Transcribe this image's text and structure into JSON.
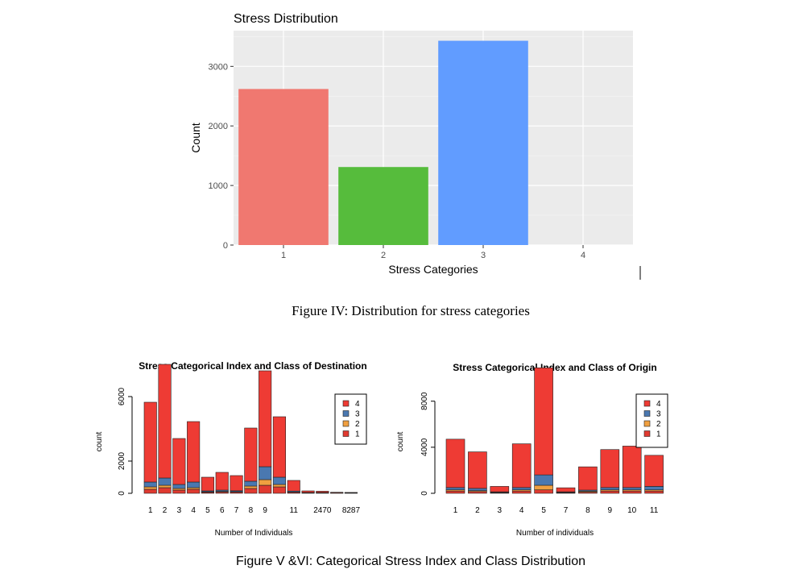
{
  "captions": {
    "fig4": "Figure IV: Distribution for stress categories",
    "fig56": "Figure V &VI: Categorical Stress Index and Class Distribution"
  },
  "chart_data": [
    {
      "type": "bar",
      "title": "Stress Distribution",
      "xlabel": "Stress Categories",
      "ylabel": "Count",
      "categories": [
        "1",
        "2",
        "3",
        "4"
      ],
      "values": [
        2620,
        1310,
        3430,
        0
      ],
      "colors": [
        "#F07870",
        "#56BC3C",
        "#619CFF",
        "#C77CFF"
      ],
      "yticks": [
        0,
        1000,
        2000,
        3000
      ],
      "ylim": [
        0,
        3600
      ],
      "grid": true,
      "background": "#EBEBEB"
    },
    {
      "type": "bar",
      "stacked": true,
      "title": "Stress Categorical Index and Class of Destination",
      "xlabel": "Number of Individuals",
      "ylabel": "count",
      "categories": [
        "1",
        "2",
        "3",
        "4",
        "5",
        "6",
        "7",
        "8",
        "9",
        "",
        "11",
        "",
        "2470",
        "",
        "8287"
      ],
      "series": [
        {
          "name": "1",
          "color": "#E03A30",
          "values": [
            250,
            350,
            200,
            250,
            60,
            80,
            70,
            300,
            500,
            400,
            60,
            20,
            20,
            10,
            10
          ]
        },
        {
          "name": "2",
          "color": "#F0A040",
          "values": [
            150,
            150,
            100,
            100,
            30,
            40,
            30,
            150,
            350,
            150,
            20,
            10,
            10,
            5,
            5
          ]
        },
        {
          "name": "3",
          "color": "#4A78B0",
          "values": [
            300,
            450,
            250,
            350,
            60,
            80,
            60,
            300,
            800,
            450,
            60,
            20,
            20,
            10,
            10
          ]
        },
        {
          "name": "4",
          "color": "#EE3B34",
          "values": [
            4950,
            7050,
            2850,
            3750,
            850,
            1100,
            940,
            3300,
            5950,
            3750,
            660,
            100,
            80,
            40,
            30
          ]
        }
      ],
      "yticks": [
        0,
        2000,
        6000
      ],
      "ylim": [
        0,
        8000
      ],
      "legend": {
        "placement": "top-right",
        "labels": [
          "4",
          "3",
          "2",
          "1"
        ]
      }
    },
    {
      "type": "bar",
      "stacked": true,
      "title": "Stress Categorical Index and Class of Origin",
      "xlabel": "Number of individuals",
      "ylabel": "count",
      "categories": [
        "1",
        "2",
        "3",
        "4",
        "5",
        "7",
        "8",
        "9",
        "10",
        "11"
      ],
      "series": [
        {
          "name": "1",
          "color": "#E03A30",
          "values": [
            200,
            150,
            50,
            200,
            300,
            50,
            100,
            200,
            200,
            200
          ]
        },
        {
          "name": "2",
          "color": "#F0A040",
          "values": [
            100,
            80,
            30,
            100,
            400,
            30,
            80,
            100,
            100,
            100
          ]
        },
        {
          "name": "3",
          "color": "#4A78B0",
          "values": [
            200,
            200,
            50,
            200,
            900,
            50,
            100,
            200,
            200,
            300
          ]
        },
        {
          "name": "4",
          "color": "#EE3B34",
          "values": [
            4200,
            3170,
            470,
            3800,
            9300,
            350,
            2020,
            3300,
            3600,
            2700
          ]
        }
      ],
      "yticks": [
        0,
        4000,
        8000
      ],
      "ylim": [
        0,
        11200
      ],
      "legend": {
        "placement": "top-right",
        "labels": [
          "4",
          "3",
          "2",
          "1"
        ]
      }
    }
  ]
}
